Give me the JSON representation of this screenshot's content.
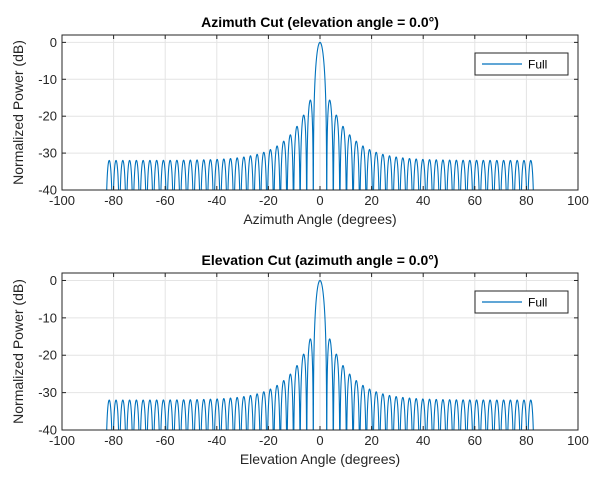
{
  "chart_data": [
    {
      "type": "line",
      "title": "Azimuth Cut (elevation angle = 0.0°)",
      "xlabel": "Azimuth Angle (degrees)",
      "ylabel": "Normalized Power (dB)",
      "xlim": [
        -100,
        100
      ],
      "ylim": [
        -40,
        2
      ],
      "xticks": [
        "-100",
        "-80",
        "-60",
        "-40",
        "-20",
        "0",
        "20",
        "40",
        "60",
        "80",
        "100"
      ],
      "yticks": [
        "0",
        "-10",
        "-20",
        "-30",
        "-40"
      ],
      "grid": true,
      "legend_position": "top-right",
      "series": [
        {
          "name": "Full",
          "color": "#0072BD",
          "pattern": {
            "angle_range": [
              -83,
              83
            ],
            "mainlobe_null_deg": 2.6,
            "first_sidelobe_db": -13.3,
            "sidelobe_floor_db": -32,
            "sidelobe_decay_deg": 9,
            "lobe_width_deg": 2.55,
            "lobe_width_growth": 0.0011,
            "null_depth_db": -50
          }
        }
      ]
    },
    {
      "type": "line",
      "title": "Elevation Cut (azimuth angle = 0.0°)",
      "xlabel": "Elevation Angle (degrees)",
      "ylabel": "Normalized Power (dB)",
      "xlim": [
        -100,
        100
      ],
      "ylim": [
        -40,
        2
      ],
      "xticks": [
        "-100",
        "-80",
        "-60",
        "-40",
        "-20",
        "0",
        "20",
        "40",
        "60",
        "80",
        "100"
      ],
      "yticks": [
        "0",
        "-10",
        "-20",
        "-30",
        "-40"
      ],
      "grid": true,
      "legend_position": "top-right",
      "series": [
        {
          "name": "Full",
          "color": "#0072BD",
          "pattern": {
            "angle_range": [
              -83,
              83
            ],
            "mainlobe_null_deg": 2.6,
            "first_sidelobe_db": -13.3,
            "sidelobe_floor_db": -32,
            "sidelobe_decay_deg": 9,
            "lobe_width_deg": 2.55,
            "lobe_width_growth": 0.0011,
            "null_depth_db": -50
          }
        }
      ]
    }
  ]
}
